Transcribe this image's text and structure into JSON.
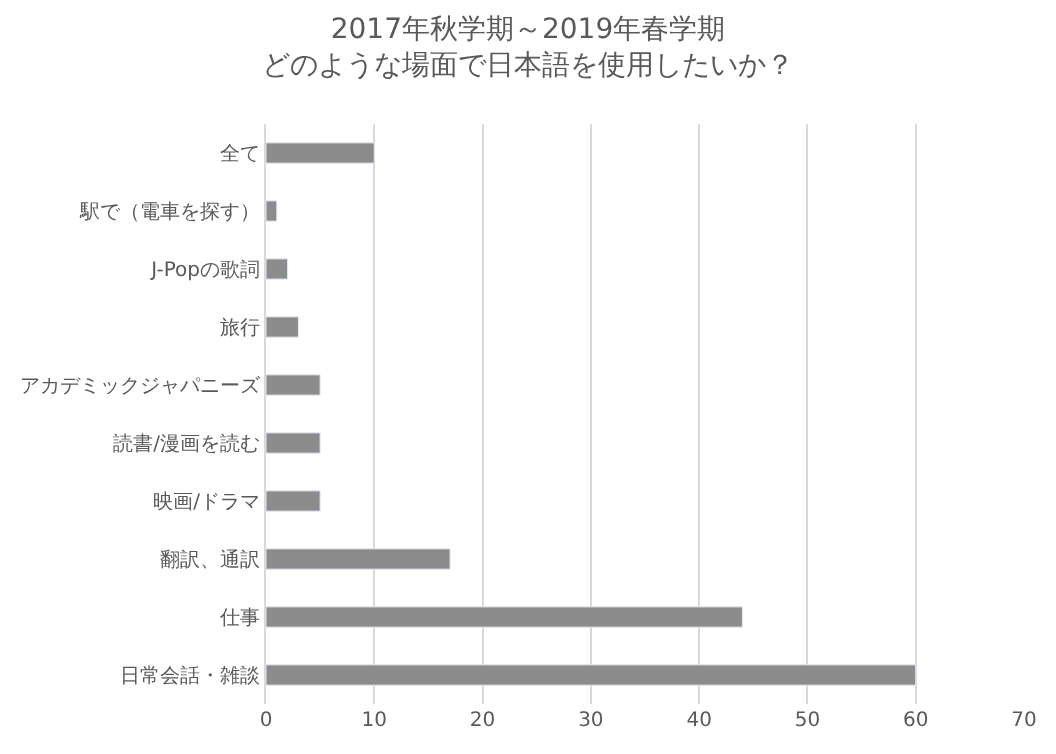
{
  "chart_data": {
    "type": "bar",
    "orientation": "horizontal",
    "title": "2017年秋学期～2019年春学期",
    "subtitle": "どのような場面で日本語を使用したいか？",
    "categories": [
      "全て",
      "駅で（電車を探す）",
      "J-Popの歌詞",
      "旅行",
      "アカデミックジャパニーズ",
      "読書/漫画を読む",
      "映画/ドラマ",
      "翻訳、通訳",
      "仕事",
      "日常会話・雑談"
    ],
    "values": [
      10,
      1,
      2,
      3,
      5,
      5,
      5,
      17,
      44,
      60
    ],
    "color": "#8c8c8c",
    "xlim": [
      0,
      70
    ],
    "xticks": [
      0,
      10,
      20,
      30,
      40,
      50,
      60,
      70
    ],
    "grid": "x"
  }
}
